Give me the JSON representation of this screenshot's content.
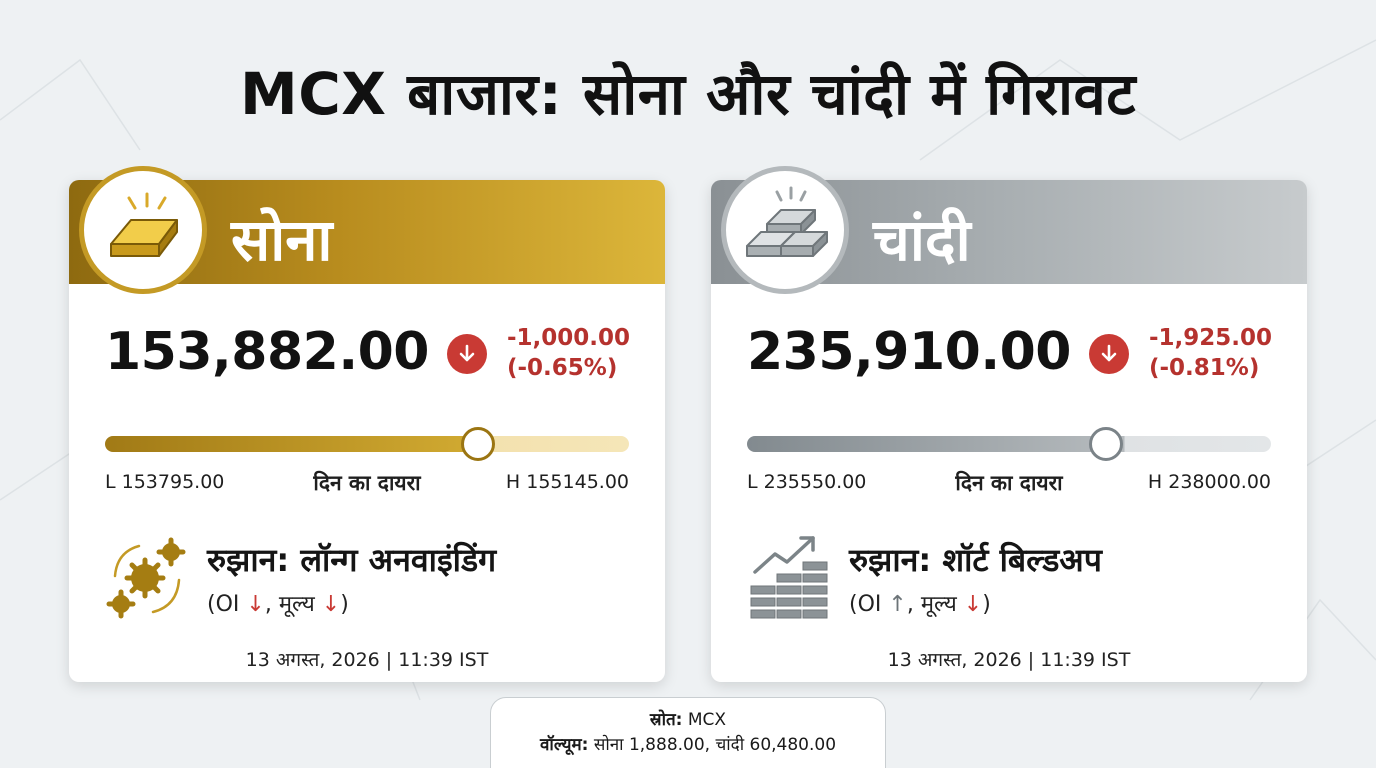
{
  "title": "MCX बाजार: सोना और चांदी में गिरावट",
  "cards": [
    {
      "name": "सोना",
      "icon": "gold-bar-icon",
      "price": "153,882.00",
      "change_abs": "-1,000.00",
      "change_pct": "(-0.65%)",
      "range_low": "L 153795.00",
      "range_label": "दिन का दायरा",
      "range_high": "H 155145.00",
      "trend_icon": "gears-cycle-icon",
      "trend_title": "रुझान: लॉन्ग अनवाइंडिंग",
      "oi_label": "(OI ",
      "oi_arrow": "↓",
      "price_label": ", मूल्य ",
      "price_arrow": "↓",
      "close_paren": ")",
      "timestamp": "13 अगस्त, 2026 | 11:39 IST",
      "accent": "#c49a25"
    },
    {
      "name": "चांदी",
      "icon": "silver-bars-icon",
      "price": "235,910.00",
      "change_abs": "-1,925.00",
      "change_pct": "(-0.81%)",
      "range_low": "L 235550.00",
      "range_label": "दिन का दायरा",
      "range_high": "H 238000.00",
      "trend_icon": "bars-uptrend-icon",
      "trend_title": "रुझान: शॉर्ट बिल्डअप",
      "oi_label": "(OI ",
      "oi_arrow": "↑",
      "price_label": ", मूल्य ",
      "price_arrow": "↓",
      "close_paren": ")",
      "timestamp": "13 अगस्त, 2026 | 11:39 IST",
      "accent": "#a9afb2"
    }
  ],
  "source": {
    "source_label": "स्रोत:",
    "source_value": " MCX",
    "volume_label": "वॉल्यूम:",
    "volume_value": " सोना 1,888.00, चांदी 60,480.00"
  },
  "colors": {
    "down_red": "#c93a34",
    "background": "#eef1f3"
  }
}
